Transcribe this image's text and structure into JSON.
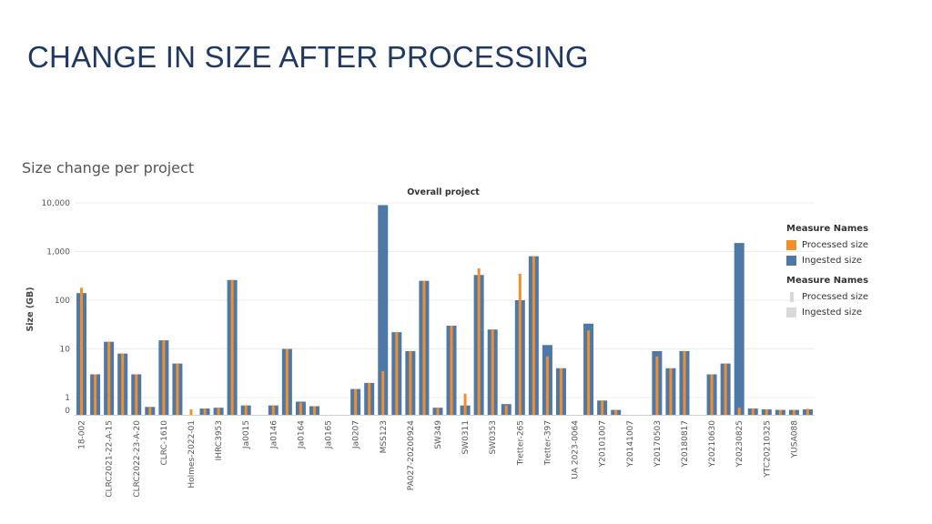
{
  "slide": {
    "title": "CHANGE IN SIZE AFTER PROCESSING"
  },
  "chart_heading": "Size change per project",
  "chart_data": {
    "type": "bar",
    "title": "Overall project",
    "ylabel": "Size (GB)",
    "xlabel": "",
    "yscale": "log",
    "ylim": [
      0,
      10000
    ],
    "yticks": [
      "10,000",
      "1,000",
      "100",
      "10",
      "1",
      "0"
    ],
    "grid": true,
    "categories": [
      "18-002",
      "c2",
      "CLRC2021-22-A-15",
      "c4",
      "CLRC2022-23-A-20",
      "c6",
      "CLRC-1610",
      "c8",
      "Holmes-2022-01",
      "c10",
      "IHRC3953",
      "c12",
      "Ja0015",
      "c14",
      "Ja0146",
      "c16",
      "Ja0164",
      "c18",
      "Ja0165",
      "c20",
      "Ja0207",
      "c22",
      "MSS123",
      "c24",
      "PA027-20200924",
      "c26",
      "SW349",
      "c28",
      "SW0311",
      "c30",
      "SW0353",
      "c32",
      "Tretter-265",
      "c34",
      "Tretter-397",
      "c36",
      "UA 2023-0064",
      "c38",
      "Y20101007",
      "c40",
      "Y20141007",
      "c42",
      "Y20170503",
      "c44",
      "Y20180817",
      "c46",
      "Y20210630",
      "c48",
      "Y20230825",
      "c50",
      "YTC20210325",
      "c52",
      "YUSA088",
      "c54"
    ],
    "tick_labels": [
      "18-002",
      "",
      "CLRC2021-22-A-15",
      "",
      "CLRC2022-23-A-20",
      "",
      "CLRC-1610",
      "",
      "Holmes-2022-01",
      "",
      "IHRC3953",
      "",
      "Ja0015",
      "",
      "Ja0146",
      "",
      "Ja0164",
      "",
      "Ja0165",
      "",
      "Ja0207",
      "",
      "MSS123",
      "",
      "PA027-20200924",
      "",
      "SW349",
      "",
      "SW0311",
      "",
      "SW0353",
      "",
      "Tretter-265",
      "",
      "Tretter-397",
      "",
      "UA 2023-0064",
      "",
      "Y20101007",
      "",
      "Y20141007",
      "",
      "Y20170503",
      "",
      "Y20180817",
      "",
      "Y20210630",
      "",
      "Y20230825",
      "",
      "YTC20210325",
      "",
      "YUSA088",
      ""
    ],
    "series": [
      {
        "name": "Ingested size",
        "color": "#4e79a7",
        "values": [
          140,
          3,
          14,
          8,
          3,
          0.2,
          15,
          5,
          0,
          0.1,
          0.15,
          260,
          0.3,
          0,
          0.3,
          10,
          0.6,
          0.25,
          0,
          0,
          1.5,
          2,
          9000,
          22,
          9,
          250,
          0.15,
          30,
          0.3,
          330,
          25,
          0.4,
          100,
          800,
          12,
          4,
          0,
          33,
          0.7,
          0.02,
          0,
          0,
          9,
          4,
          9,
          0,
          3,
          5,
          1500,
          0.1,
          0.05,
          0.02,
          0.02,
          0.05
        ]
      },
      {
        "name": "Processed size",
        "color": "#f28e2b",
        "values": [
          180,
          3,
          14,
          8,
          3,
          0.2,
          15,
          5,
          0.05,
          0.1,
          0.15,
          260,
          0.3,
          0,
          0.3,
          10,
          0.5,
          0.25,
          0,
          0,
          1.5,
          2,
          3.5,
          22,
          9,
          250,
          0.15,
          30,
          1.2,
          450,
          25,
          0.3,
          350,
          800,
          7,
          4,
          0,
          24,
          0.7,
          0.02,
          0,
          0,
          7,
          4,
          9,
          0,
          3,
          5,
          0.15,
          0.1,
          0.05,
          0.02,
          0.02,
          0.08
        ]
      }
    ],
    "legend": [
      {
        "title": "Measure Names",
        "items": [
          {
            "label": "Processed size",
            "color": "#f28e2b"
          },
          {
            "label": "Ingested size",
            "color": "#4e79a7"
          }
        ]
      },
      {
        "title": "Measure Names",
        "items": [
          {
            "label": "Processed size",
            "color": "#d9d9d9"
          },
          {
            "label": "Ingested size",
            "color": "#d9d9d9"
          }
        ]
      }
    ],
    "legend_position": "right"
  }
}
